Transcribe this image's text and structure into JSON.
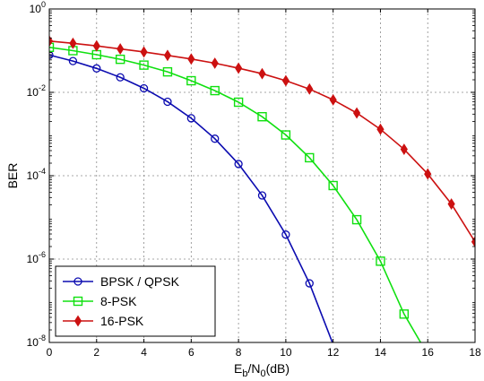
{
  "chart_data": {
    "type": "line",
    "xlabel": {
      "base": "E",
      "sub1": "b",
      "mid": "/N",
      "sub2": "0",
      "tail": "(dB)"
    },
    "ylabel": "BER",
    "xlim": [
      0,
      18
    ],
    "ylim_log10": [
      -8,
      0
    ],
    "yscale": "log",
    "grid": true,
    "legend_position": "bottom-left",
    "x_ticks": [
      "0",
      "2",
      "4",
      "6",
      "8",
      "10",
      "12",
      "14",
      "16",
      "18"
    ],
    "y_ticks": [
      {
        "base": "10",
        "exp": "0"
      },
      {
        "base": "10",
        "exp": "-2"
      },
      {
        "base": "10",
        "exp": "-4"
      },
      {
        "base": "10",
        "exp": "-6"
      },
      {
        "base": "10",
        "exp": "-8"
      }
    ],
    "series": [
      {
        "name": "BPSK / QPSK",
        "color": "#0b0bb0",
        "marker": "circle",
        "x": [
          0,
          1,
          2,
          3,
          4,
          5,
          6,
          7,
          8,
          9,
          10,
          11,
          12
        ],
        "y": [
          0.0786,
          0.0563,
          0.0375,
          0.0229,
          0.0125,
          0.00595,
          0.00239,
          0.000773,
          0.000191,
          3.36e-05,
          3.87e-06,
          2.62e-07,
          9e-09
        ]
      },
      {
        "name": "8-PSK",
        "color": "#10e010",
        "marker": "square",
        "x": [
          0,
          1,
          2,
          3,
          4,
          5,
          6,
          7,
          8,
          9,
          10,
          11,
          12,
          13,
          14,
          15,
          15.7
        ],
        "y": [
          0.12,
          0.1,
          0.08,
          0.062,
          0.045,
          0.031,
          0.019,
          0.011,
          0.0058,
          0.0026,
          0.00095,
          0.00027,
          5.8e-05,
          8.8e-06,
          8.9e-07,
          4.8e-08,
          1e-08
        ]
      },
      {
        "name": "16-PSK",
        "color": "#cc1111",
        "marker": "diamond",
        "x": [
          0,
          1,
          2,
          3,
          4,
          5,
          6,
          7,
          8,
          9,
          10,
          11,
          12,
          13,
          14,
          15,
          16,
          17,
          18
        ],
        "y": [
          0.17,
          0.15,
          0.13,
          0.11,
          0.093,
          0.077,
          0.063,
          0.05,
          0.038,
          0.028,
          0.019,
          0.012,
          0.0066,
          0.0032,
          0.0013,
          0.00043,
          0.00011,
          2.1e-05,
          2.6e-06
        ]
      }
    ]
  }
}
